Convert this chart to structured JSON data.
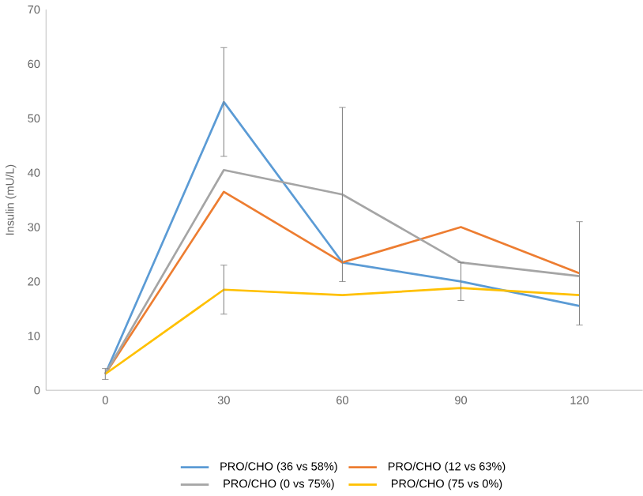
{
  "chart_data": {
    "type": "line",
    "ylabel": "Insulin (mU/L)",
    "x": [
      0,
      30,
      60,
      90,
      120
    ],
    "series": [
      {
        "name": "PRO/CHO (36 vs 58%)",
        "color": "#5b9bd5",
        "values": [
          3,
          53,
          23.5,
          20,
          15.5
        ],
        "errors": [
          null,
          10,
          null,
          3.5,
          null
        ]
      },
      {
        "name": "PRO/CHO (12 vs 63%)",
        "color": "#ed7d31",
        "values": [
          3,
          36.5,
          23.5,
          30,
          21.5
        ],
        "errors": [
          1,
          null,
          null,
          null,
          9.5
        ]
      },
      {
        "name": "PRO/CHO (0 vs 75%)",
        "color": "#a5a5a5",
        "values": [
          3,
          40.5,
          36,
          23.5,
          21
        ],
        "errors": [
          null,
          null,
          16,
          null,
          null
        ]
      },
      {
        "name": "PRO/CHO (75 vs 0%)",
        "color": "#ffc000",
        "values": [
          3,
          18.5,
          17.5,
          18.8,
          17.5
        ],
        "errors": [
          null,
          4.5,
          null,
          null,
          null
        ]
      }
    ],
    "xlim": [
      -15,
      136
    ],
    "ylim": [
      0,
      70
    ],
    "xticks": [
      0,
      30,
      60,
      90,
      120
    ],
    "yticks": [
      0,
      10,
      20,
      30,
      40,
      50,
      60,
      70
    ],
    "grid": false,
    "legend": "bottom",
    "marker": "none",
    "line_style": "solid"
  }
}
